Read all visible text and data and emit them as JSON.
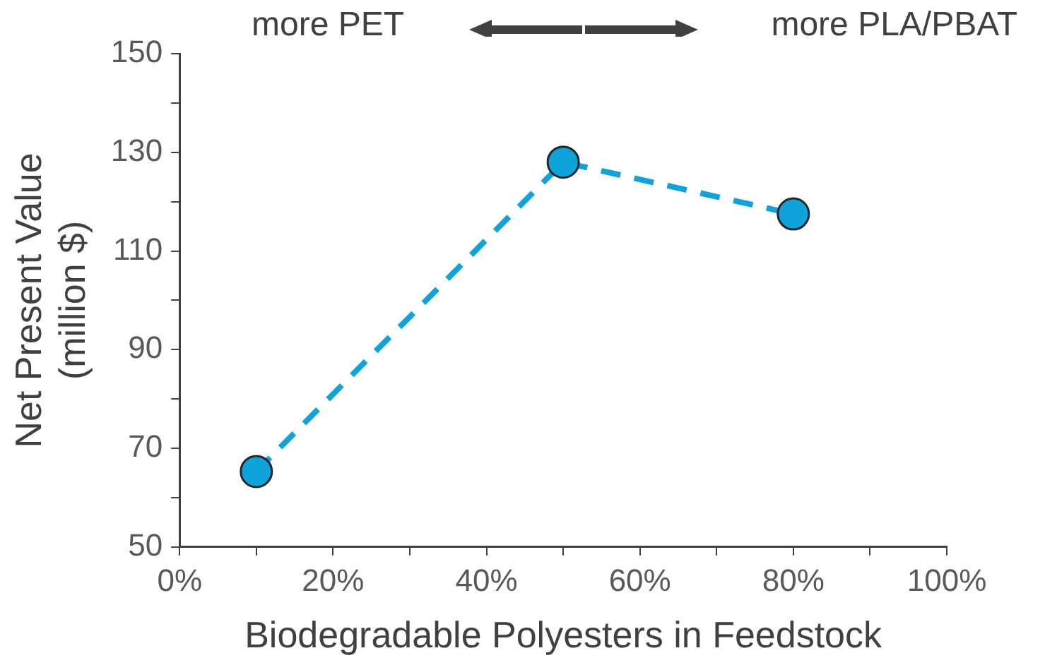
{
  "chart_data": {
    "type": "line",
    "xlabel": "Biodegradable Polyesters in Feedstock",
    "ylabel": "Net Present Value\n(million $)",
    "annotations": [
      "more PET",
      "more PLA/PBAT"
    ],
    "x": [
      10,
      50,
      80
    ],
    "series": [
      {
        "color": "#0fa3dc",
        "values": [
          65.3,
          128,
          117.5
        ]
      }
    ],
    "xlim": [
      0,
      100
    ],
    "xticks": [
      {
        "value": 0,
        "label": "0%"
      },
      {
        "value": 10,
        "label": null
      },
      {
        "value": 20,
        "label": "20%"
      },
      {
        "value": 30,
        "label": null
      },
      {
        "value": 40,
        "label": "40%"
      },
      {
        "value": 50,
        "label": null
      },
      {
        "value": 60,
        "label": "60%"
      },
      {
        "value": 70,
        "label": null
      },
      {
        "value": 80,
        "label": "80%"
      },
      {
        "value": 90,
        "label": null
      },
      {
        "value": 100,
        "label": "100%"
      }
    ],
    "ylim": [
      50,
      150
    ],
    "yticks": [
      50,
      {
        "value": 60,
        "label": null
      },
      70,
      {
        "value": 80,
        "label": null
      },
      90,
      {
        "value": 100,
        "label": null
      },
      110,
      {
        "value": 120,
        "label": null
      },
      130,
      {
        "value": 140,
        "label": null
      },
      150
    ],
    "grid": false,
    "legend": false,
    "marker": "circle",
    "line_style": "dashed"
  }
}
